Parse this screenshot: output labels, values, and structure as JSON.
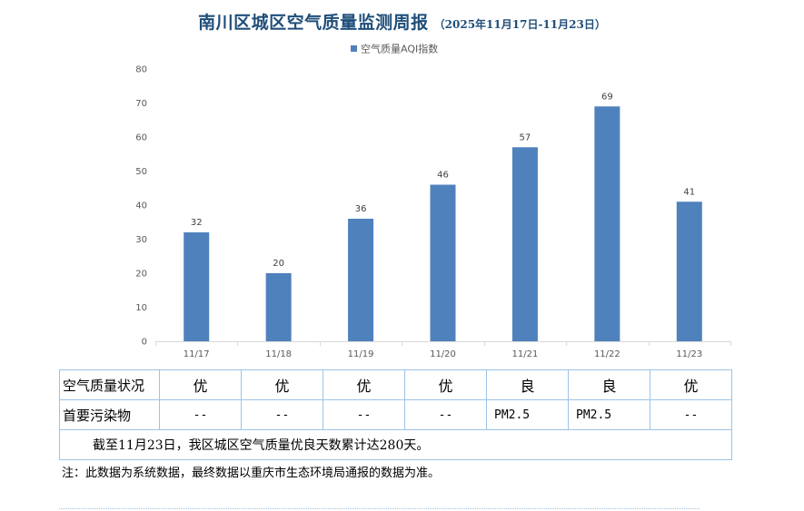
{
  "title": "南川区城区空气质量监测周报",
  "subtitle": "（2025年11月17日-11月23日）",
  "chart_data": {
    "type": "bar",
    "title": "南川区城区空气质量监测周报",
    "subtitle": "（2025年11月17日-11月23日）",
    "categories": [
      "11/17",
      "11/18",
      "11/19",
      "11/20",
      "11/21",
      "11/22",
      "11/23"
    ],
    "series": [
      {
        "name": "空气质量AQI指数",
        "values": [
          32,
          20,
          36,
          46,
          57,
          69,
          41
        ]
      }
    ],
    "ylim": [
      0,
      80
    ],
    "yticks": [
      0,
      10,
      20,
      30,
      40,
      50,
      60,
      70,
      80
    ],
    "xlabel": "",
    "ylabel": "",
    "legend": "top-center",
    "grid": false,
    "bar_color": "#4f81bd",
    "data_labels": true
  },
  "table": {
    "quality_label": "空气质量状况",
    "levels": [
      "优",
      "优",
      "优",
      "优",
      "良",
      "良",
      "优"
    ],
    "pollutant_label": "首要污染物",
    "pollutants": [
      "--",
      "--",
      "--",
      "--",
      "PM2.5",
      "PM2.5",
      "--"
    ],
    "summary": "截至11月23日，我区城区空气质量优良天数累计达280天。"
  },
  "footnote": "注：此数据为系统数据，最终数据以重庆市生态环境局通报的数据为准。"
}
